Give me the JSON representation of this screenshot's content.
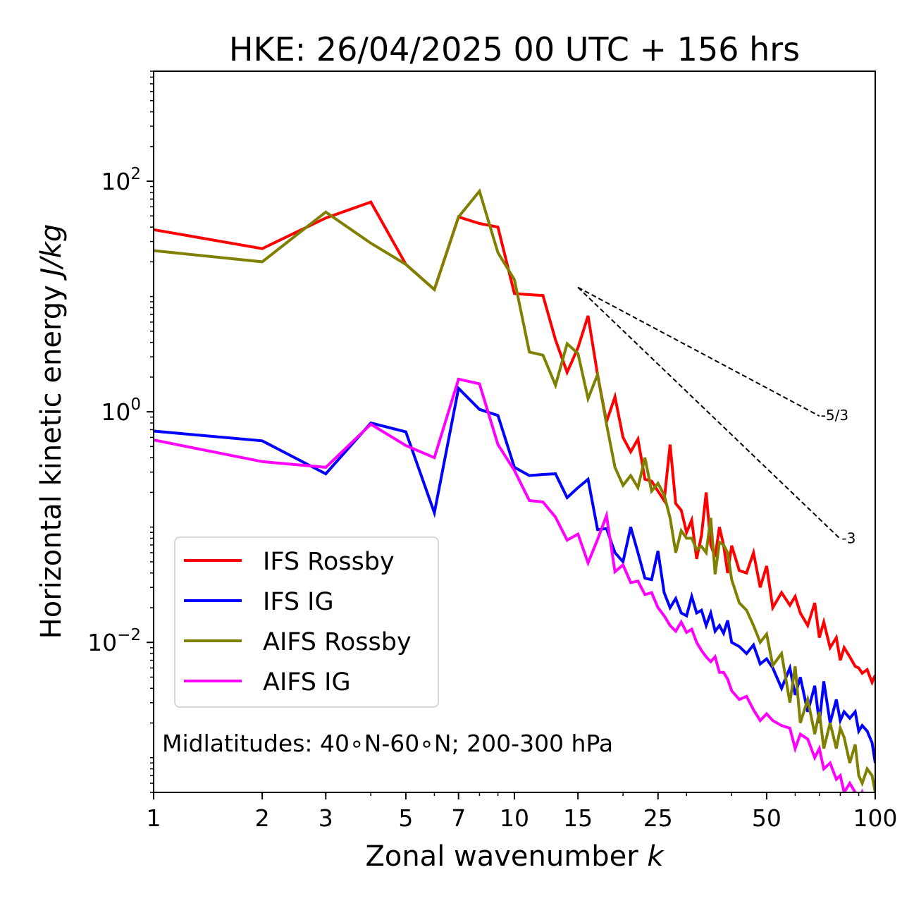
{
  "chart_data": {
    "type": "line",
    "title": "HKE: 26/04/2025 00 UTC + 156 hrs",
    "xlabel": "Zonal wavenumber",
    "xlabel_var": "k",
    "ylabel": "Horizontal kinetic energy",
    "ylabel_unit": "J/kg",
    "xscale": "log",
    "yscale": "log",
    "xlim": [
      1,
      100
    ],
    "ylim": [
      0.0005,
      900
    ],
    "x_ticks": [
      {
        "value": 1,
        "label": "1"
      },
      {
        "value": 2,
        "label": "2"
      },
      {
        "value": 3,
        "label": "3"
      },
      {
        "value": 5,
        "label": "5"
      },
      {
        "value": 7,
        "label": "7"
      },
      {
        "value": 10,
        "label": "10"
      },
      {
        "value": 15,
        "label": "15"
      },
      {
        "value": 25,
        "label": "25"
      },
      {
        "value": 50,
        "label": "50"
      },
      {
        "value": 100,
        "label": "100"
      }
    ],
    "y_ticks": [
      {
        "value": 100,
        "base": "10",
        "exp": "2"
      },
      {
        "value": 1,
        "base": "10",
        "exp": "0"
      },
      {
        "value": 0.01,
        "base": "10",
        "exp": "−2"
      }
    ],
    "grid": false,
    "legend_position": "lower-left",
    "annotation": "Midlatitudes: 40∘N-60∘N; 200-300 hPa",
    "reference_slopes": [
      {
        "label": "-5/3",
        "slope": -1.6667,
        "x": [
          15,
          70
        ],
        "y": [
          12,
          0.92
        ]
      },
      {
        "label": "-3",
        "slope": -3,
        "x": [
          15,
          80
        ],
        "y": [
          12,
          0.079
        ]
      }
    ],
    "series": [
      {
        "name": "IFS Rossby",
        "color": "#ff0000",
        "x": [
          1,
          2,
          3,
          4,
          5,
          6,
          7,
          8,
          9,
          10,
          12,
          13,
          14,
          15,
          16,
          17,
          18,
          19,
          20,
          21,
          22,
          23,
          24,
          25,
          26,
          27,
          28,
          29,
          30,
          31,
          32,
          33,
          34,
          35,
          36,
          37,
          38,
          39,
          40,
          42,
          44,
          46,
          48,
          50,
          52,
          55,
          58,
          60,
          62,
          65,
          68,
          70,
          72,
          75,
          78,
          80,
          82,
          85,
          88,
          90,
          92,
          95,
          98,
          100
        ],
        "y": [
          38,
          26,
          48,
          66,
          19,
          11.5,
          49,
          43,
          40,
          10.6,
          10.2,
          4.2,
          2.2,
          3.6,
          6.8,
          2.1,
          0.82,
          1.35,
          0.6,
          0.45,
          0.58,
          0.26,
          0.25,
          0.205,
          0.17,
          0.52,
          0.16,
          0.14,
          0.09,
          0.115,
          0.053,
          0.085,
          0.2,
          0.07,
          0.055,
          0.1,
          0.07,
          0.04,
          0.069,
          0.042,
          0.04,
          0.06,
          0.03,
          0.046,
          0.02,
          0.027,
          0.021,
          0.025,
          0.018,
          0.014,
          0.022,
          0.011,
          0.015,
          0.009,
          0.011,
          0.007,
          0.009,
          0.0075,
          0.0062,
          0.006,
          0.0054,
          0.0058,
          0.0045,
          0.0052
        ]
      },
      {
        "name": "IFS IG",
        "color": "#0000ff",
        "x": [
          1,
          2,
          3,
          4,
          5,
          6,
          7,
          8,
          9,
          10,
          11,
          12,
          13,
          14,
          15,
          16,
          17,
          18,
          19,
          20,
          21,
          22,
          23,
          24,
          25,
          26,
          27,
          28,
          29,
          30,
          31,
          32,
          33,
          34,
          35,
          36,
          37,
          38,
          39,
          40,
          42,
          44,
          46,
          48,
          50,
          52,
          55,
          58,
          60,
          62,
          65,
          68,
          70,
          72,
          75,
          78,
          80,
          82,
          85,
          88,
          90,
          92,
          95,
          98,
          100
        ],
        "y": [
          0.68,
          0.56,
          0.29,
          0.8,
          0.67,
          0.133,
          1.6,
          1.05,
          0.93,
          0.33,
          0.28,
          0.286,
          0.29,
          0.18,
          0.22,
          0.26,
          0.095,
          0.097,
          0.06,
          0.05,
          0.1,
          0.06,
          0.036,
          0.035,
          0.062,
          0.027,
          0.02,
          0.024,
          0.018,
          0.017,
          0.025,
          0.018,
          0.019,
          0.014,
          0.018,
          0.0125,
          0.014,
          0.012,
          0.0155,
          0.01,
          0.0092,
          0.008,
          0.0095,
          0.0065,
          0.0072,
          0.006,
          0.004,
          0.006,
          0.0035,
          0.005,
          0.0025,
          0.0042,
          0.002,
          0.0046,
          0.002,
          0.0032,
          0.0021,
          0.0025,
          0.0022,
          0.0025,
          0.0017,
          0.0019,
          0.0017,
          0.00135,
          0.0009
        ]
      },
      {
        "name": "AIFS Rossby",
        "color": "#808000",
        "x": [
          1,
          2,
          3,
          4,
          5,
          6,
          7,
          8,
          9,
          10,
          11,
          12,
          13,
          14,
          15,
          16,
          17,
          18,
          19,
          20,
          21,
          22,
          23,
          24,
          25,
          26,
          27,
          28,
          29,
          30,
          31,
          32,
          33,
          34,
          35,
          36,
          37,
          38,
          39,
          40,
          42,
          44,
          46,
          48,
          50,
          52,
          55,
          58,
          60,
          62,
          65,
          68,
          70,
          72,
          75,
          78,
          80,
          82,
          85,
          88,
          90,
          92,
          95,
          98,
          100
        ],
        "y": [
          25,
          20,
          54,
          29,
          19,
          11.5,
          49,
          82,
          24,
          14,
          3.3,
          3.1,
          1.7,
          3.9,
          3.2,
          1.3,
          2.1,
          0.78,
          0.33,
          0.23,
          0.28,
          0.22,
          0.4,
          0.205,
          0.24,
          0.19,
          0.12,
          0.06,
          0.093,
          0.08,
          0.08,
          0.064,
          0.068,
          0.06,
          0.12,
          0.039,
          0.074,
          0.07,
          0.06,
          0.035,
          0.022,
          0.019,
          0.014,
          0.01,
          0.0118,
          0.0063,
          0.008,
          0.003,
          0.0062,
          0.002,
          0.0032,
          0.0016,
          0.0025,
          0.0012,
          0.002,
          0.0012,
          0.0018,
          0.0015,
          0.0009,
          0.0013,
          0.0007,
          0.0006,
          0.0008,
          0.0007,
          0.0005
        ]
      },
      {
        "name": "AIFS IG",
        "color": "#ff00ff",
        "x": [
          1,
          2,
          3,
          4,
          5,
          6,
          7,
          8,
          9,
          10,
          11,
          12,
          13,
          14,
          15,
          16,
          17,
          18,
          19,
          20,
          21,
          22,
          23,
          24,
          25,
          26,
          27,
          28,
          29,
          30,
          31,
          32,
          33,
          34,
          35,
          36,
          37,
          38,
          39,
          40,
          42,
          44,
          46,
          48,
          50,
          52,
          55,
          58,
          60,
          62,
          65,
          68,
          70,
          72,
          75,
          78,
          80,
          82,
          85,
          88,
          90,
          92,
          95,
          98,
          100
        ],
        "y": [
          0.57,
          0.37,
          0.33,
          0.78,
          0.51,
          0.4,
          1.92,
          1.75,
          0.52,
          0.31,
          0.17,
          0.165,
          0.122,
          0.077,
          0.087,
          0.049,
          0.078,
          0.126,
          0.041,
          0.047,
          0.033,
          0.034,
          0.026,
          0.027,
          0.02,
          0.017,
          0.014,
          0.0125,
          0.015,
          0.0122,
          0.013,
          0.01,
          0.0085,
          0.0075,
          0.0068,
          0.0075,
          0.0055,
          0.0055,
          0.0048,
          0.0038,
          0.0032,
          0.0034,
          0.0026,
          0.0021,
          0.0024,
          0.0021,
          0.0019,
          0.0018,
          0.0012,
          0.0016,
          0.00145,
          0.001,
          0.0012,
          0.0008,
          0.0009,
          0.00065,
          0.0007,
          0.0005,
          0.0006,
          0.0005,
          0.0004,
          0.0005,
          0.0004,
          0.0003,
          0.0003
        ]
      }
    ]
  }
}
